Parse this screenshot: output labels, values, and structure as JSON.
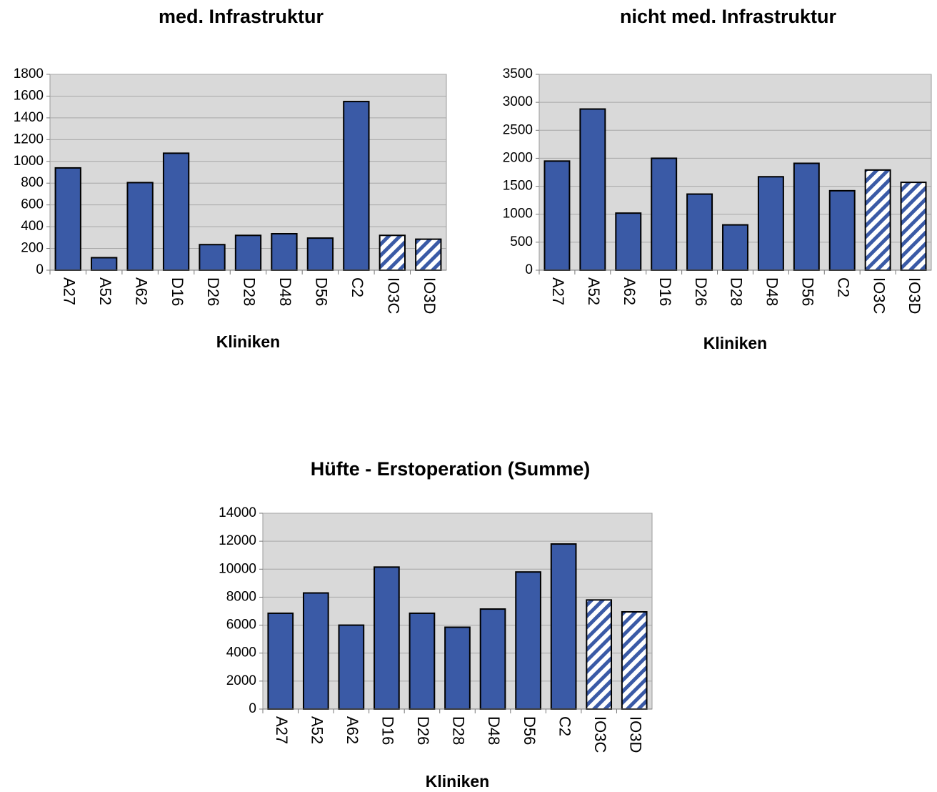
{
  "chart_data": [
    {
      "type": "bar",
      "title": "med. Infrastruktur",
      "x_label": "Kliniken",
      "categories": [
        "A27",
        "A52",
        "A62",
        "D16",
        "D26",
        "D28",
        "D48",
        "D56",
        "C2",
        "IO3C",
        "IO3D"
      ],
      "values": [
        940,
        115,
        805,
        1075,
        235,
        320,
        335,
        295,
        1550,
        320,
        285
      ],
      "bar_styles": [
        "solid",
        "solid",
        "solid",
        "solid",
        "solid",
        "solid",
        "solid",
        "solid",
        "solid",
        "hatched",
        "hatched"
      ],
      "color": "#3a5aa6",
      "ylim": [
        0,
        1800
      ],
      "yticks": [
        0,
        200,
        400,
        600,
        800,
        1000,
        1200,
        1400,
        1600,
        1800
      ],
      "grid": true
    },
    {
      "type": "bar",
      "title": "nicht med. Infrastruktur",
      "x_label": "Kliniken",
      "categories": [
        "A27",
        "A52",
        "A62",
        "D16",
        "D26",
        "D28",
        "D48",
        "D56",
        "C2",
        "IO3C",
        "IO3D"
      ],
      "values": [
        1950,
        2880,
        1020,
        2000,
        1360,
        810,
        1670,
        1910,
        1420,
        1790,
        1570
      ],
      "bar_styles": [
        "solid",
        "solid",
        "solid",
        "solid",
        "solid",
        "solid",
        "solid",
        "solid",
        "solid",
        "hatched",
        "hatched"
      ],
      "color": "#3a5aa6",
      "ylim": [
        0,
        3500
      ],
      "yticks": [
        0,
        500,
        1000,
        1500,
        2000,
        2500,
        3000,
        3500
      ],
      "grid": true
    },
    {
      "type": "bar",
      "title": "Hüfte - Erstoperation (Summe)",
      "x_label": "Kliniken",
      "categories": [
        "A27",
        "A52",
        "A62",
        "D16",
        "D26",
        "D28",
        "D48",
        "D56",
        "C2",
        "IO3C",
        "IO3D"
      ],
      "values": [
        6850,
        8300,
        6000,
        10150,
        6850,
        5850,
        7150,
        9800,
        11800,
        7800,
        6950
      ],
      "bar_styles": [
        "solid",
        "solid",
        "solid",
        "solid",
        "solid",
        "solid",
        "solid",
        "solid",
        "solid",
        "hatched",
        "hatched"
      ],
      "color": "#3a5aa6",
      "ylim": [
        0,
        14000
      ],
      "yticks": [
        0,
        2000,
        4000,
        6000,
        8000,
        10000,
        12000,
        14000
      ],
      "grid": true
    }
  ]
}
